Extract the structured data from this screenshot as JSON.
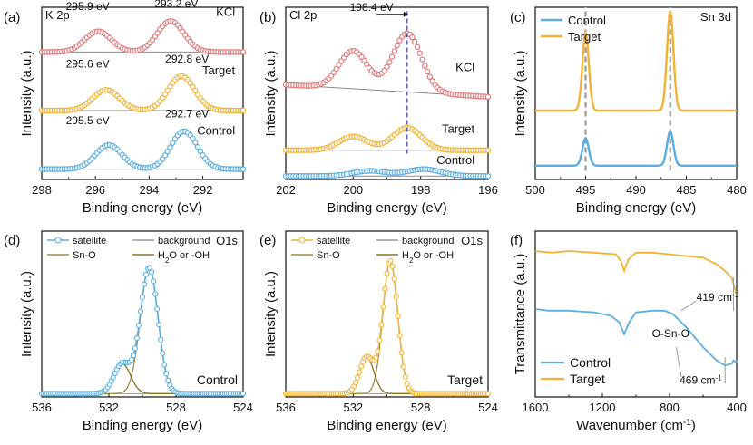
{
  "colors": {
    "red": "#e07a7a",
    "orange": "#f2b233",
    "blue": "#5aaee0",
    "gray": "#9a9a9a",
    "olive": "#a08a3e",
    "olive_dark": "#8a7420",
    "axis": "#111111",
    "dash_gray": "#9a9a9a",
    "dash_blue": "#3c3caa"
  },
  "chart_data": [
    {
      "id": "a",
      "panel_label": "(a)",
      "type": "line",
      "marker": "open-circle",
      "corner_label": "K 2p",
      "xlabel": "Binding energy (eV)",
      "ylabel": "Intensity (a.u.)",
      "xlim": [
        298,
        290.5
      ],
      "x_reversed": true,
      "xticks": [
        298,
        296,
        294,
        292
      ],
      "xtick_labels": [
        "298",
        "296",
        "294",
        "292"
      ],
      "ylim": [
        0,
        1
      ],
      "series": [
        {
          "name": "KCl",
          "color": "red",
          "baseline": 0.74,
          "peaks": [
            {
              "center": 295.9,
              "height": 0.12,
              "width": 0.7
            },
            {
              "center": 293.2,
              "height": 0.18,
              "width": 0.7
            }
          ]
        },
        {
          "name": "Target",
          "color": "orange",
          "baseline": 0.4,
          "peaks": [
            {
              "center": 295.6,
              "height": 0.12,
              "width": 0.7
            },
            {
              "center": 292.8,
              "height": 0.2,
              "width": 0.7
            }
          ]
        },
        {
          "name": "Control",
          "color": "blue",
          "baseline": 0.06,
          "peaks": [
            {
              "center": 295.5,
              "height": 0.14,
              "width": 0.7
            },
            {
              "center": 292.7,
              "height": 0.22,
              "width": 0.7
            }
          ]
        }
      ],
      "series_labels": [
        {
          "text": "KCl",
          "x": 290.8,
          "y": 0.95
        },
        {
          "text": "Target",
          "x": 290.8,
          "y": 0.61
        },
        {
          "text": "Control",
          "x": 290.8,
          "y": 0.26
        }
      ],
      "annotations": [
        {
          "text": "295.9 eV",
          "x": 297.1,
          "y": 0.985
        },
        {
          "text": "293.2 eV",
          "x": 293.8,
          "y": 1.0
        },
        {
          "text": "295.6 eV",
          "x": 297.1,
          "y": 0.65
        },
        {
          "text": "292.8 eV",
          "x": 293.4,
          "y": 0.68
        },
        {
          "text": "295.5 eV",
          "x": 297.1,
          "y": 0.32
        },
        {
          "text": "292.7 eV",
          "x": 293.4,
          "y": 0.36
        }
      ]
    },
    {
      "id": "b",
      "panel_label": "(b)",
      "type": "line",
      "marker": "open-circle",
      "corner_label": "Cl 2p",
      "xlabel": "Binding energy (eV)",
      "ylabel": "Intensity (a.u.)",
      "xlim": [
        202,
        196
      ],
      "x_reversed": true,
      "xticks": [
        202,
        200,
        198,
        196
      ],
      "xtick_labels": [
        "202",
        "200",
        "198",
        "196"
      ],
      "ylim": [
        0,
        1
      ],
      "series": [
        {
          "name": "KCl",
          "color": "red",
          "baseline": 0.55,
          "slope_end": 0.48,
          "peaks": [
            {
              "center": 198.4,
              "height": 0.34,
              "width": 0.6
            },
            {
              "center": 200.0,
              "height": 0.22,
              "width": 0.6
            }
          ]
        },
        {
          "name": "Target",
          "color": "orange",
          "baseline": 0.17,
          "peaks": [
            {
              "center": 198.4,
              "height": 0.13,
              "width": 0.6
            },
            {
              "center": 200.0,
              "height": 0.08,
              "width": 0.6
            }
          ]
        },
        {
          "name": "Control",
          "color": "blue",
          "baseline": 0.02,
          "peaks": [
            {
              "center": 197.9,
              "height": 0.04,
              "width": 0.7
            },
            {
              "center": 199.5,
              "height": 0.03,
              "width": 0.7
            }
          ]
        }
      ],
      "series_labels": [
        {
          "text": "KCl",
          "x": 196.4,
          "y": 0.63
        },
        {
          "text": "Target",
          "x": 196.4,
          "y": 0.27
        },
        {
          "text": "Control",
          "x": 196.4,
          "y": 0.09
        }
      ],
      "annotations": [
        {
          "text": "198.4 eV",
          "x": 200.1,
          "y": 0.98
        }
      ],
      "marker_line": {
        "x": 198.4,
        "y_from": 0.15,
        "y_to": 0.98
      }
    },
    {
      "id": "c",
      "panel_label": "(c)",
      "type": "line",
      "marker": "none",
      "corner_label": "Sn 3d",
      "xlabel": "Binding energy (eV)",
      "ylabel": "Intensity (a.u.)",
      "xlim": [
        500,
        480
      ],
      "x_reversed": true,
      "xticks": [
        500,
        495,
        490,
        485,
        480
      ],
      "xtick_labels": [
        "500",
        "495",
        "490",
        "485",
        "480"
      ],
      "ylim": [
        0,
        1
      ],
      "series": [
        {
          "name": "Control",
          "color": "blue",
          "baseline": 0.08,
          "peaks": [
            {
              "center": 495.0,
              "height": 0.16,
              "width": 0.45
            },
            {
              "center": 486.6,
              "height": 0.2,
              "width": 0.45
            }
          ]
        },
        {
          "name": "Target",
          "color": "orange",
          "baseline": 0.4,
          "peaks": [
            {
              "center": 495.0,
              "height": 0.45,
              "width": 0.45
            },
            {
              "center": 486.6,
              "height": 0.58,
              "width": 0.45
            }
          ]
        }
      ],
      "legend_position": "top-left",
      "ref_lines": [
        495.0,
        486.6
      ]
    },
    {
      "id": "d",
      "panel_label": "(d)",
      "type": "line",
      "marker": "open-circle",
      "corner_label": "O1s",
      "xlabel": "Binding energy (eV)",
      "ylabel": "Intensity (a.u.)",
      "xlim": [
        536,
        524
      ],
      "x_reversed": true,
      "xticks": [
        536,
        532,
        528,
        524
      ],
      "xtick_labels": [
        "536",
        "532",
        "528",
        "524"
      ],
      "ylim": [
        0,
        1
      ],
      "series": [
        {
          "name": "satellite",
          "color": "blue",
          "role": "data",
          "peaks": [
            {
              "center": 529.6,
              "height": 0.76,
              "width": 0.75
            },
            {
              "center": 531.2,
              "height": 0.18,
              "width": 0.7
            }
          ]
        },
        {
          "name": "background",
          "color": "gray",
          "role": "background"
        },
        {
          "name": "Sn-O",
          "color": "olive",
          "role": "fit",
          "peaks": [
            {
              "center": 529.6,
              "height": 0.76,
              "width": 0.75
            }
          ]
        },
        {
          "name": "H2O or -OH",
          "color": "olive_dark",
          "role": "fit",
          "peaks": [
            {
              "center": 531.2,
              "height": 0.18,
              "width": 0.7
            }
          ]
        }
      ],
      "legend_position": "top",
      "corner_text": "Control"
    },
    {
      "id": "e",
      "panel_label": "(e)",
      "type": "line",
      "marker": "open-circle",
      "corner_label": "O1s",
      "xlabel": "Binding energy (eV)",
      "ylabel": "Intensity (a.u.)",
      "xlim": [
        536,
        524
      ],
      "x_reversed": true,
      "xticks": [
        536,
        532,
        528,
        524
      ],
      "xtick_labels": [
        "536",
        "532",
        "528",
        "524"
      ],
      "ylim": [
        0,
        1
      ],
      "series": [
        {
          "name": "satellite",
          "color": "orange",
          "role": "data",
          "peaks": [
            {
              "center": 529.8,
              "height": 0.8,
              "width": 0.62
            },
            {
              "center": 531.2,
              "height": 0.22,
              "width": 0.6
            }
          ]
        },
        {
          "name": "background",
          "color": "gray",
          "role": "background"
        },
        {
          "name": "Sn-O",
          "color": "olive",
          "role": "fit",
          "peaks": [
            {
              "center": 529.8,
              "height": 0.8,
              "width": 0.62
            }
          ]
        },
        {
          "name": "H2O or -OH",
          "color": "olive_dark",
          "role": "fit",
          "peaks": [
            {
              "center": 531.2,
              "height": 0.22,
              "width": 0.6
            }
          ]
        }
      ],
      "legend_position": "top",
      "corner_text": "Target"
    },
    {
      "id": "f",
      "panel_label": "(f)",
      "type": "line",
      "marker": "none",
      "xlabel": "Wavenumber (cm",
      "xlabel_sup": "-1",
      "xlabel_close": ")",
      "ylabel": "Transmittance (a.u.)",
      "xlim": [
        1600,
        400
      ],
      "x_reversed": true,
      "xticks": [
        1600,
        1200,
        800,
        400
      ],
      "xtick_labels": [
        "1600",
        "1200",
        "800",
        "400"
      ],
      "ylim": [
        0,
        1
      ],
      "series": [
        {
          "name": "Control",
          "color": "blue",
          "points": [
            [
              1600,
              0.53
            ],
            [
              1520,
              0.52
            ],
            [
              1400,
              0.52
            ],
            [
              1250,
              0.51
            ],
            [
              1150,
              0.49
            ],
            [
              1100,
              0.45
            ],
            [
              1070,
              0.38
            ],
            [
              1040,
              0.45
            ],
            [
              1000,
              0.51
            ],
            [
              900,
              0.52
            ],
            [
              830,
              0.52
            ],
            [
              780,
              0.5
            ],
            [
              700,
              0.42
            ],
            [
              600,
              0.3
            ],
            [
              520,
              0.22
            ],
            [
              470,
              0.19
            ],
            [
              430,
              0.2
            ],
            [
              419,
              0.22
            ],
            [
              405,
              0.21
            ],
            [
              400,
              0.22
            ]
          ]
        },
        {
          "name": "Target",
          "color": "orange",
          "points": [
            [
              1600,
              0.88
            ],
            [
              1500,
              0.87
            ],
            [
              1400,
              0.88
            ],
            [
              1250,
              0.87
            ],
            [
              1120,
              0.86
            ],
            [
              1090,
              0.82
            ],
            [
              1070,
              0.76
            ],
            [
              1045,
              0.83
            ],
            [
              1000,
              0.87
            ],
            [
              900,
              0.87
            ],
            [
              800,
              0.86
            ],
            [
              700,
              0.85
            ],
            [
              600,
              0.84
            ],
            [
              520,
              0.8
            ],
            [
              470,
              0.76
            ],
            [
              430,
              0.72
            ],
            [
              410,
              0.65
            ],
            [
              400,
              0.62
            ]
          ]
        }
      ],
      "legend_position": "bottom-left",
      "annotations": [
        {
          "text": "O-Sn-O",
          "x": 905,
          "y": 0.36
        },
        {
          "text": "419 cm",
          "sup": "-1",
          "x": 640,
          "y": 0.58
        },
        {
          "text": "469 cm",
          "sup": "-1",
          "x": 740,
          "y": 0.08
        }
      ]
    }
  ]
}
